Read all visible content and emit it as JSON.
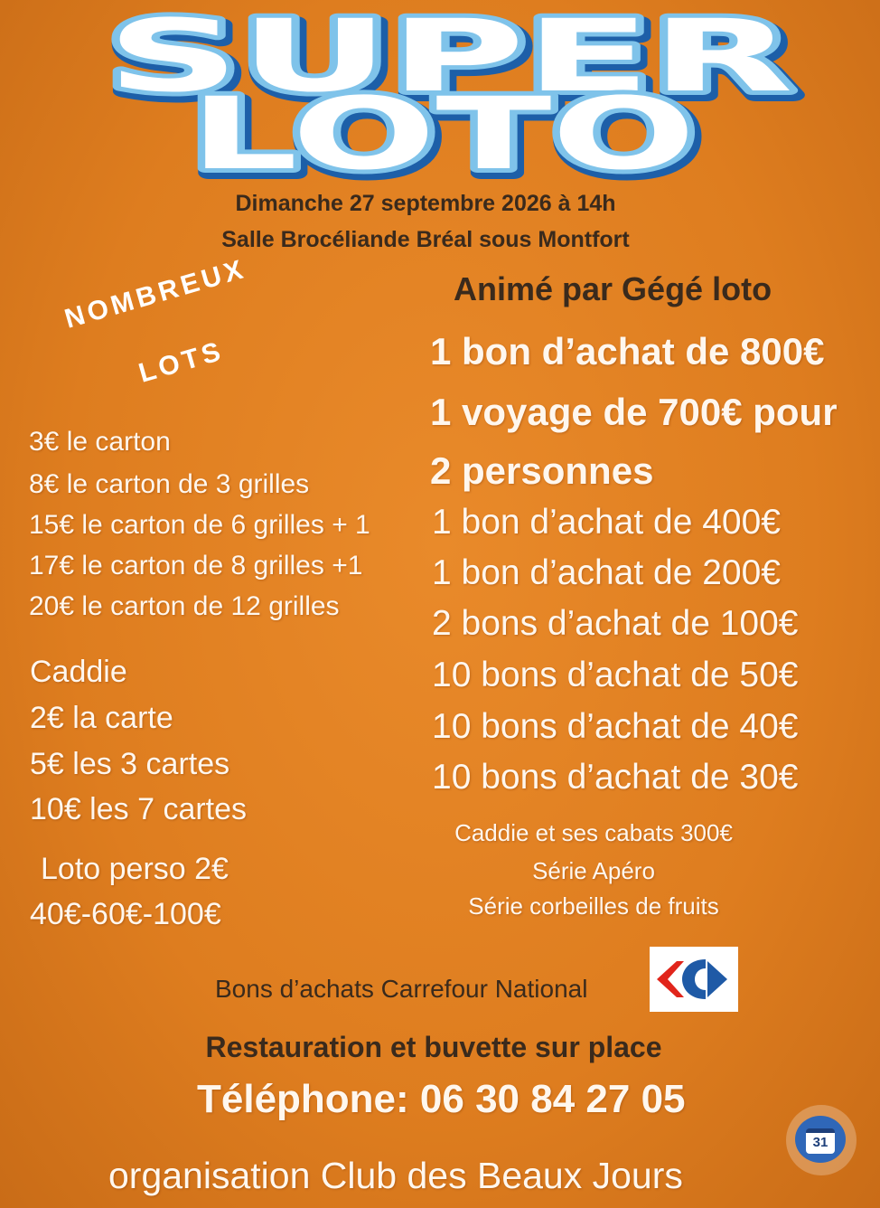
{
  "header": {
    "title": [
      "SUPER",
      "LOTO"
    ],
    "date": "Dimanche 27 septembre 2026 à 14h",
    "venue": "Salle Brocéliande Bréal sous Montfort"
  },
  "badge": [
    "NOMBREUX",
    "LOTS"
  ],
  "prices": [
    "3€ le carton",
    "8€ le carton de 3 grilles",
    "15€ le carton de 6 grilles + 1",
    "17€ le carton de 8 grilles +1",
    "20€ le carton de 12 grilles"
  ],
  "caddie": [
    "Caddie",
    "2€ la carte",
    "5€ les 3 cartes",
    "10€ les 7 cartes"
  ],
  "loto_perso": [
    "Loto perso 2€",
    "40€-60€-100€"
  ],
  "host": "Animé par Gégé loto",
  "main_prizes": [
    "1 bon d’achat de 800€",
    "1 voyage de 700€ pour",
    "2 personnes"
  ],
  "prizes": [
    "1 bon d’achat de 400€",
    "1 bon d’achat de 200€",
    "2 bons d’achat de 100€",
    "10 bons d’achat de 50€",
    "10 bons d’achat de 40€",
    "10 bons d’achat de 30€"
  ],
  "extras": [
    "Caddie et ses cabats 300€",
    "Série Apéro",
    "Série corbeilles de fruits"
  ],
  "sponsor": "Bons d’achats Carrefour National",
  "catering": "Restauration et buvette sur place",
  "phone": "Téléphone: 06 30 84 27 05",
  "organizer": "organisation Club des Beaux Jours",
  "calendar_badge": "31"
}
